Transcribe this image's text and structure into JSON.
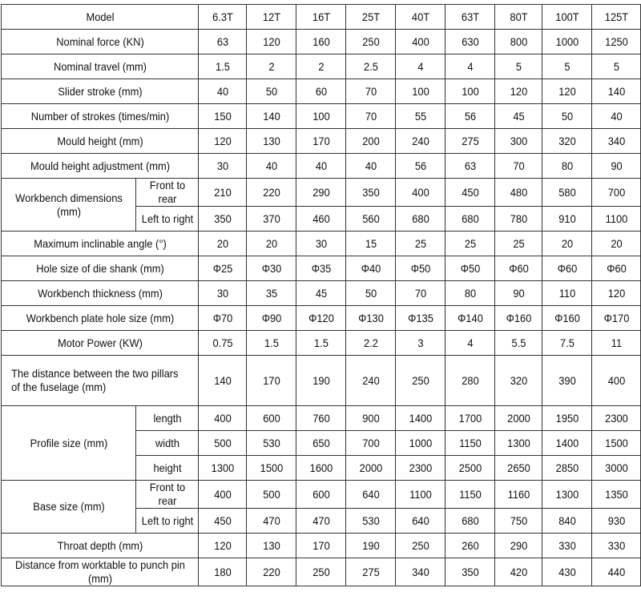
{
  "table": {
    "header": {
      "label": "Model",
      "columns": [
        "6.3T",
        "12T",
        "16T",
        "25T",
        "40T",
        "63T",
        "80T",
        "100T",
        "125T"
      ]
    },
    "rows": [
      {
        "label": "Nominal force (KN)",
        "values": [
          63,
          120,
          160,
          250,
          400,
          630,
          800,
          1000,
          1250
        ]
      },
      {
        "label": "Nominal travel (mm)",
        "values": [
          1.5,
          2,
          2,
          2.5,
          4,
          4,
          5,
          5,
          5
        ]
      },
      {
        "label": "Slider stroke (mm)",
        "values": [
          40,
          50,
          60,
          70,
          100,
          100,
          120,
          120,
          140
        ]
      },
      {
        "label": "Number of strokes (times/min)",
        "values": [
          150,
          140,
          100,
          70,
          55,
          56,
          45,
          50,
          40
        ]
      },
      {
        "label": "Mould height (mm)",
        "values": [
          120,
          130,
          170,
          200,
          240,
          275,
          300,
          320,
          340
        ]
      },
      {
        "label": "Mould height adjustment (mm)",
        "values": [
          30,
          40,
          40,
          40,
          56,
          63,
          70,
          80,
          90
        ]
      },
      {
        "label": "Workbench dimensions (mm)",
        "subrows": [
          {
            "label": "Front to rear",
            "values": [
              210,
              220,
              290,
              350,
              400,
              450,
              480,
              580,
              700
            ]
          },
          {
            "label": "Left to right",
            "values": [
              350,
              370,
              460,
              560,
              680,
              680,
              780,
              910,
              1100
            ]
          }
        ]
      },
      {
        "label": "Maximum inclinable angle (°)",
        "values": [
          20,
          20,
          30,
          15,
          25,
          25,
          25,
          20,
          20
        ]
      },
      {
        "label": "Hole size of die shank (mm)",
        "values": [
          "Φ25",
          "Φ30",
          "Φ35",
          "Φ40",
          "Φ50",
          "Φ50",
          "Φ60",
          "Φ60",
          "Φ60"
        ]
      },
      {
        "label": "Workbench thickness (mm)",
        "values": [
          30,
          35,
          45,
          50,
          70,
          80,
          90,
          110,
          120
        ]
      },
      {
        "label": "Workbench plate hole size (mm)",
        "values": [
          "Φ70",
          "Φ90",
          "Φ120",
          "Φ130",
          "Φ135",
          "Φ140",
          "Φ160",
          "Φ160",
          "Φ170"
        ]
      },
      {
        "label": "Motor Power (KW)",
        "values": [
          0.75,
          1.5,
          1.5,
          2.2,
          3,
          4,
          5.5,
          7.5,
          11
        ]
      },
      {
        "label": "The distance between the two pillars of the fuselage (mm)",
        "values": [
          140,
          170,
          190,
          240,
          250,
          280,
          320,
          390,
          400
        ]
      },
      {
        "label": "Profile size (mm)",
        "subrows": [
          {
            "label": "length",
            "values": [
              400,
              600,
              760,
              900,
              1400,
              1700,
              2000,
              1950,
              2300
            ]
          },
          {
            "label": "width",
            "values": [
              500,
              530,
              650,
              700,
              1000,
              1150,
              1300,
              1400,
              1500
            ]
          },
          {
            "label": "height",
            "values": [
              1300,
              1500,
              1600,
              2000,
              2300,
              2500,
              2650,
              2850,
              3000
            ]
          }
        ]
      },
      {
        "label": "Base size (mm)",
        "subrows": [
          {
            "label": "Front to rear",
            "values": [
              400,
              500,
              600,
              640,
              1100,
              1150,
              1160,
              1300,
              1350
            ]
          },
          {
            "label": "Left to right",
            "values": [
              450,
              470,
              470,
              530,
              640,
              680,
              750,
              840,
              930
            ]
          }
        ]
      },
      {
        "label": "Throat depth (mm)",
        "values": [
          120,
          130,
          170,
          190,
          250,
          260,
          290,
          330,
          330
        ]
      },
      {
        "label": "Distance from worktable to punch pin (mm)",
        "values": [
          180,
          220,
          250,
          275,
          340,
          350,
          420,
          430,
          440
        ]
      }
    ]
  }
}
